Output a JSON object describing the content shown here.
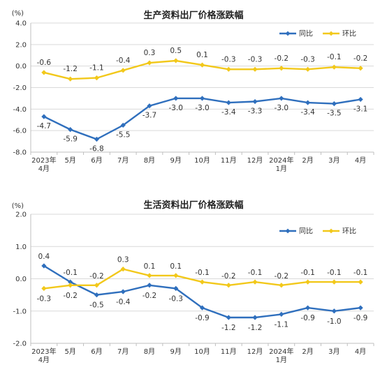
{
  "chart_data": [
    {
      "type": "line",
      "title": "生产资料出厂价格涨跌幅",
      "unit": "(%)",
      "ylim": [
        -8.0,
        4.0
      ],
      "yticks": [
        "4.0",
        "2.0",
        "0.0",
        "-2.0",
        "-4.0",
        "-6.0",
        "-8.0"
      ],
      "categories": [
        "2023年\n4月",
        "5月",
        "6月",
        "7月",
        "8月",
        "9月",
        "10月",
        "11月",
        "12月",
        "2024年\n1月",
        "2月",
        "3月",
        "4月"
      ],
      "legend_position": "top-right",
      "series": [
        {
          "name": "同比",
          "color": "#2f6fbd",
          "values": [
            -4.7,
            -5.9,
            -6.8,
            -5.5,
            -3.7,
            -3.0,
            -3.0,
            -3.4,
            -3.3,
            -3.0,
            -3.4,
            -3.5,
            -3.1
          ],
          "labels": [
            "-4.7",
            "-5.9",
            "-6.8",
            "-5.5",
            "-3.7",
            "-3.0",
            "-3.0",
            "-3.4",
            "-3.3",
            "-3.0",
            "-3.4",
            "-3.5",
            "-3.1"
          ]
        },
        {
          "name": "环比",
          "color": "#f2c81a",
          "values": [
            -0.6,
            -1.2,
            -1.1,
            -0.4,
            0.3,
            0.5,
            0.1,
            -0.3,
            -0.3,
            -0.2,
            -0.3,
            -0.1,
            -0.2
          ],
          "labels": [
            "-0.6",
            "-1.2",
            "-1.1",
            "-0.4",
            "0.3",
            "0.5",
            "0.1",
            "-0.3",
            "-0.3",
            "-0.2",
            "-0.3",
            "-0.1",
            "-0.2"
          ]
        }
      ]
    },
    {
      "type": "line",
      "title": "生活资料出厂价格涨跌幅",
      "unit": "(%)",
      "ylim": [
        -2.0,
        2.0
      ],
      "yticks": [
        "2.0",
        "1.0",
        "0.0",
        "-1.0",
        "-2.0"
      ],
      "categories": [
        "2023年\n4月",
        "5月",
        "6月",
        "7月",
        "8月",
        "9月",
        "10月",
        "11月",
        "12月",
        "2024年\n1月",
        "2月",
        "3月",
        "4月"
      ],
      "legend_position": "top-right",
      "series": [
        {
          "name": "同比",
          "color": "#2f6fbd",
          "values": [
            0.4,
            -0.1,
            -0.5,
            -0.4,
            -0.2,
            -0.3,
            -0.9,
            -1.2,
            -1.2,
            -1.1,
            -0.9,
            -1.0,
            -0.9
          ],
          "labels": [
            "0.4",
            "-0.1",
            "-0.5",
            "-0.4",
            "-0.2",
            "-0.3",
            "-0.9",
            "-1.2",
            "-1.2",
            "-1.1",
            "-0.9",
            "-1.0",
            "-0.9"
          ]
        },
        {
          "name": "环比",
          "color": "#f2c81a",
          "values": [
            -0.3,
            -0.2,
            -0.2,
            0.3,
            0.1,
            0.1,
            -0.1,
            -0.2,
            -0.1,
            -0.2,
            -0.1,
            -0.1,
            -0.1
          ],
          "labels": [
            "-0.3",
            "-0.2",
            "-0.2",
            "0.3",
            "0.1",
            "0.1",
            "-0.1",
            "-0.2",
            "-0.1",
            "-0.2",
            "-0.1",
            "-0.1",
            "-0.1"
          ]
        }
      ]
    }
  ]
}
